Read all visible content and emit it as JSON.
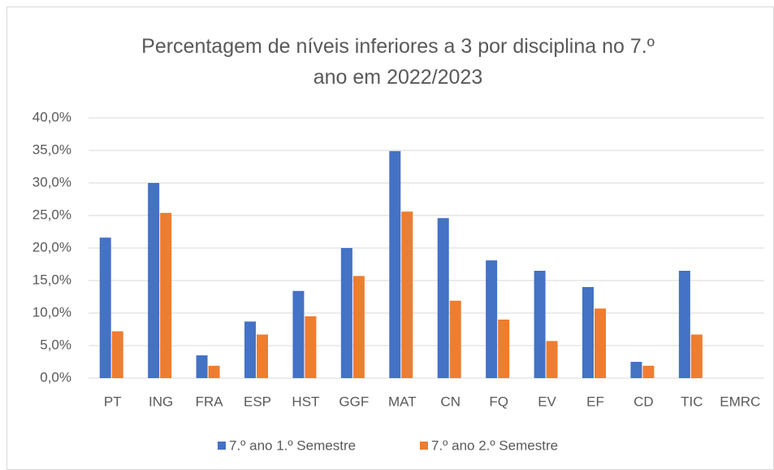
{
  "chart_data": {
    "type": "bar",
    "title": "Percentagem de níveis inferiores a 3 por disciplina no 7.º ano em 2022/2023",
    "categories": [
      "PT",
      "ING",
      "FRA",
      "ESP",
      "HST",
      "GGF",
      "MAT",
      "CN",
      "FQ",
      "EV",
      "EF",
      "CD",
      "TIC",
      "EMRC"
    ],
    "series": [
      {
        "name": "7.º ano 1.º Semestre",
        "color": "#4472c4",
        "values": [
          21.6,
          30.0,
          3.5,
          8.7,
          13.4,
          20.0,
          34.9,
          24.6,
          18.1,
          16.5,
          14.0,
          2.5,
          16.5,
          0
        ]
      },
      {
        "name": "7.º ano 2.º Semestre",
        "color": "#ed7d31",
        "values": [
          7.2,
          25.4,
          1.9,
          6.7,
          9.5,
          15.7,
          25.6,
          11.9,
          9.0,
          5.7,
          10.7,
          1.9,
          6.7,
          0
        ]
      }
    ],
    "ylim": [
      0,
      40
    ],
    "yticks": [
      {
        "value": 0,
        "label": "0,0%"
      },
      {
        "value": 5,
        "label": "5,0%"
      },
      {
        "value": 10,
        "label": "10,0%"
      },
      {
        "value": 15,
        "label": "15,0%"
      },
      {
        "value": 20,
        "label": "20,0%"
      },
      {
        "value": 25,
        "label": "25,0%"
      },
      {
        "value": 30,
        "label": "30,0%"
      },
      {
        "value": 35,
        "label": "35,0%"
      },
      {
        "value": 40,
        "label": "40,0%"
      }
    ],
    "grid": true,
    "legend": "bottom"
  }
}
